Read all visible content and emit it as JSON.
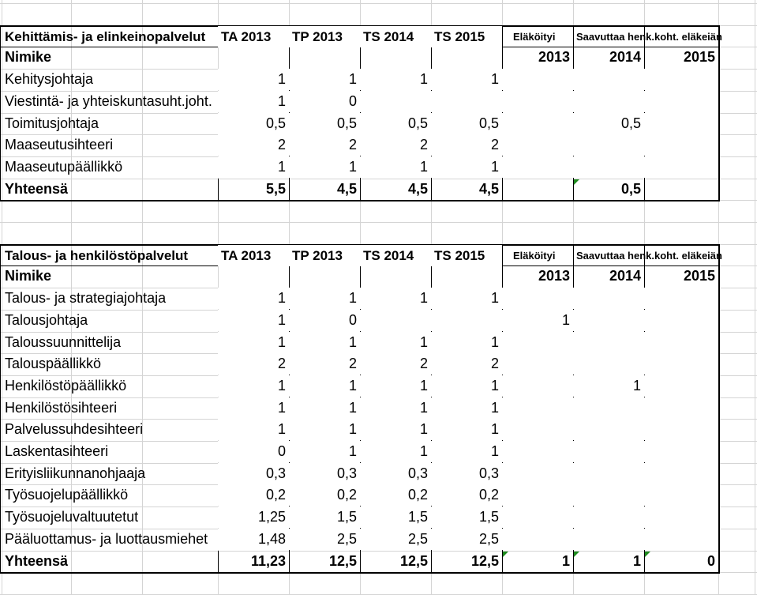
{
  "sections": [
    {
      "title": "Kehittämis- ja elinkeinopalvelut",
      "cols": [
        "TA 2013",
        "TP 2013",
        "TS 2014",
        "TS 2015",
        "Eläköityi",
        "Saavuttaa henk.koht. eläkeiän"
      ],
      "subheader": {
        "label": "Nimike",
        "years": [
          "2013",
          "2014",
          "2015"
        ]
      },
      "rows": [
        {
          "name": "Kehitysjohtaja",
          "vals": [
            "1",
            "1",
            "1",
            "1",
            "",
            "",
            ""
          ]
        },
        {
          "name": "Viestintä- ja yhteiskuntasuht.joht.",
          "vals": [
            "1",
            "0",
            "",
            "",
            "",
            "",
            ""
          ]
        },
        {
          "name": "Toimitusjohtaja",
          "vals": [
            "0,5",
            "0,5",
            "0,5",
            "0,5",
            "",
            "0,5",
            ""
          ]
        },
        {
          "name": "Maaseutusihteeri",
          "vals": [
            "2",
            "2",
            "2",
            "2",
            "",
            "",
            ""
          ]
        },
        {
          "name": "Maaseutupäällikkö",
          "vals": [
            "1",
            "1",
            "1",
            "1",
            "",
            "",
            ""
          ]
        }
      ],
      "total": {
        "name": "Yhteensä",
        "vals": [
          "5,5",
          "4,5",
          "4,5",
          "4,5",
          "",
          "0,5",
          ""
        ]
      }
    },
    {
      "title": "Talous- ja henkilöstöpalvelut",
      "cols": [
        "TA 2013",
        "TP 2013",
        "TS 2014",
        "TS 2015",
        "Eläköityi",
        "Saavuttaa henk.koht. eläkeiän"
      ],
      "subheader": {
        "label": "Nimike",
        "years": [
          "2013",
          "2014",
          "2015"
        ]
      },
      "rows": [
        {
          "name": "Talous- ja strategiajohtaja",
          "vals": [
            "1",
            "1",
            "1",
            "1",
            "",
            "",
            ""
          ]
        },
        {
          "name": "Talousjohtaja",
          "vals": [
            "1",
            "0",
            "",
            "",
            "1",
            "",
            ""
          ]
        },
        {
          "name": "Taloussuunnittelija",
          "vals": [
            "1",
            "1",
            "1",
            "1",
            "",
            "",
            ""
          ]
        },
        {
          "name": "Talouspäällikkö",
          "vals": [
            "2",
            "2",
            "2",
            "2",
            "",
            "",
            ""
          ]
        },
        {
          "name": "Henkilöstöpäällikkö",
          "vals": [
            "1",
            "1",
            "1",
            "1",
            "",
            "1",
            ""
          ]
        },
        {
          "name": "Henkilöstösihteeri",
          "vals": [
            "1",
            "1",
            "1",
            "1",
            "",
            "",
            ""
          ]
        },
        {
          "name": "Palvelussuhdesihteeri",
          "vals": [
            "1",
            "1",
            "1",
            "1",
            "",
            "",
            ""
          ]
        },
        {
          "name": "Laskentasihteeri",
          "vals": [
            "0",
            "1",
            "1",
            "1",
            "",
            "",
            ""
          ]
        },
        {
          "name": "Erityisliikunnanohjaaja",
          "vals": [
            "0,3",
            "0,3",
            "0,3",
            "0,3",
            "",
            "",
            ""
          ]
        },
        {
          "name": "Työsuojelupäällikkö",
          "vals": [
            "0,2",
            "0,2",
            "0,2",
            "0,2",
            "",
            "",
            ""
          ]
        },
        {
          "name": "Työsuojeluvaltuutetut",
          "vals": [
            "1,25",
            "1,5",
            "1,5",
            "1,5",
            "",
            "",
            ""
          ]
        },
        {
          "name": "Pääluottamus- ja luottausmiehet",
          "vals": [
            "1,48",
            "2,5",
            "2,5",
            "2,5",
            "",
            "",
            ""
          ]
        }
      ],
      "total": {
        "name": "Yhteensä",
        "vals": [
          "11,23",
          "12,5",
          "12,5",
          "12,5",
          "1",
          "1",
          "0"
        ]
      }
    }
  ],
  "colors": {
    "grid": "#d4d4d4",
    "border": "#000000",
    "comment_marker": "#1e8a1e"
  }
}
